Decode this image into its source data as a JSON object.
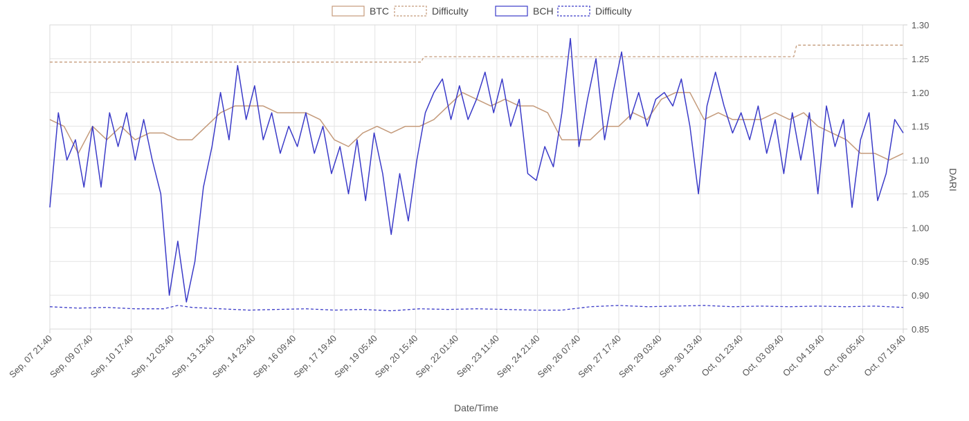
{
  "chart_data": {
    "type": "line",
    "xlabel": "Date/Time",
    "ylabel": "DARI",
    "ylim": [
      0.85,
      1.3
    ],
    "y_ticks": [
      "0.85",
      "0.90",
      "0.95",
      "1.00",
      "1.05",
      "1.10",
      "1.15",
      "1.20",
      "1.25",
      "1.30"
    ],
    "x_ticks": [
      "Sep, 07 21:40",
      "Sep, 09 07:40",
      "Sep, 10 17:40",
      "Sep, 12 03:40",
      "Sep, 13 13:40",
      "Sep, 14 23:40",
      "Sep, 16 09:40",
      "Sep, 17 19:40",
      "Sep, 19 05:40",
      "Sep, 20 15:40",
      "Sep, 22 01:40",
      "Sep, 23 11:40",
      "Sep, 24 21:40",
      "Sep, 26 07:40",
      "Sep, 27 17:40",
      "Sep, 29 03:40",
      "Sep, 30 13:40",
      "Oct, 01 23:40",
      "Oct, 03 09:40",
      "Oct, 04 19:40",
      "Oct, 06 05:40",
      "Oct, 07 19:40"
    ],
    "x_domain": [
      0,
      30
    ],
    "grid": true,
    "legend_position": "top-center",
    "legend": [
      {
        "label": "BTC",
        "color": "#c49a7a",
        "dashed": false
      },
      {
        "label": "Difficulty",
        "color": "#c49a7a",
        "dashed": true
      },
      {
        "label": "BCH",
        "color": "#3a3ac8",
        "dashed": false
      },
      {
        "label": "Difficulty",
        "color": "#3a3ac8",
        "dashed": true
      }
    ],
    "series": [
      {
        "name": "BTC",
        "color": "#c49a7a",
        "dashed": false,
        "points": [
          [
            0.0,
            1.16
          ],
          [
            0.5,
            1.15
          ],
          [
            1.0,
            1.11
          ],
          [
            1.5,
            1.15
          ],
          [
            2.0,
            1.13
          ],
          [
            2.5,
            1.15
          ],
          [
            3.0,
            1.13
          ],
          [
            3.5,
            1.14
          ],
          [
            4.0,
            1.14
          ],
          [
            4.5,
            1.13
          ],
          [
            5.0,
            1.13
          ],
          [
            5.5,
            1.15
          ],
          [
            6.0,
            1.17
          ],
          [
            6.5,
            1.18
          ],
          [
            7.0,
            1.18
          ],
          [
            7.5,
            1.18
          ],
          [
            8.0,
            1.17
          ],
          [
            8.5,
            1.17
          ],
          [
            9.0,
            1.17
          ],
          [
            9.5,
            1.16
          ],
          [
            10.0,
            1.13
          ],
          [
            10.5,
            1.12
          ],
          [
            11.0,
            1.14
          ],
          [
            11.5,
            1.15
          ],
          [
            12.0,
            1.14
          ],
          [
            12.5,
            1.15
          ],
          [
            13.0,
            1.15
          ],
          [
            13.5,
            1.16
          ],
          [
            14.0,
            1.18
          ],
          [
            14.5,
            1.2
          ],
          [
            15.0,
            1.19
          ],
          [
            15.5,
            1.18
          ],
          [
            16.0,
            1.19
          ],
          [
            16.5,
            1.18
          ],
          [
            17.0,
            1.18
          ],
          [
            17.5,
            1.17
          ],
          [
            18.0,
            1.13
          ],
          [
            18.5,
            1.13
          ],
          [
            19.0,
            1.13
          ],
          [
            19.5,
            1.15
          ],
          [
            20.0,
            1.15
          ],
          [
            20.5,
            1.17
          ],
          [
            21.0,
            1.16
          ],
          [
            21.5,
            1.19
          ],
          [
            22.0,
            1.2
          ],
          [
            22.5,
            1.2
          ],
          [
            23.0,
            1.16
          ],
          [
            23.5,
            1.17
          ],
          [
            24.0,
            1.16
          ],
          [
            24.5,
            1.16
          ],
          [
            25.0,
            1.16
          ],
          [
            25.5,
            1.17
          ],
          [
            26.0,
            1.16
          ],
          [
            26.5,
            1.17
          ],
          [
            27.0,
            1.15
          ],
          [
            27.5,
            1.14
          ],
          [
            28.0,
            1.13
          ],
          [
            28.5,
            1.11
          ],
          [
            29.0,
            1.11
          ],
          [
            29.5,
            1.1
          ],
          [
            30.0,
            1.11
          ]
        ]
      },
      {
        "name": "Difficulty",
        "color": "#c49a7a",
        "dashed": true,
        "points": [
          [
            0.0,
            1.245
          ],
          [
            13.05,
            1.245
          ],
          [
            13.15,
            1.253
          ],
          [
            26.15,
            1.253
          ],
          [
            26.25,
            1.27
          ],
          [
            30.0,
            1.27
          ]
        ]
      },
      {
        "name": "BCH",
        "color": "#3a3ac8",
        "dashed": false,
        "points": [
          [
            0.0,
            1.03
          ],
          [
            0.3,
            1.17
          ],
          [
            0.6,
            1.1
          ],
          [
            0.9,
            1.13
          ],
          [
            1.2,
            1.06
          ],
          [
            1.5,
            1.15
          ],
          [
            1.8,
            1.06
          ],
          [
            2.1,
            1.17
          ],
          [
            2.4,
            1.12
          ],
          [
            2.7,
            1.17
          ],
          [
            3.0,
            1.1
          ],
          [
            3.3,
            1.16
          ],
          [
            3.6,
            1.1
          ],
          [
            3.9,
            1.05
          ],
          [
            4.2,
            0.9
          ],
          [
            4.5,
            0.98
          ],
          [
            4.8,
            0.89
          ],
          [
            5.1,
            0.95
          ],
          [
            5.4,
            1.06
          ],
          [
            5.7,
            1.12
          ],
          [
            6.0,
            1.2
          ],
          [
            6.3,
            1.13
          ],
          [
            6.6,
            1.24
          ],
          [
            6.9,
            1.16
          ],
          [
            7.2,
            1.21
          ],
          [
            7.5,
            1.13
          ],
          [
            7.8,
            1.17
          ],
          [
            8.1,
            1.11
          ],
          [
            8.4,
            1.15
          ],
          [
            8.7,
            1.12
          ],
          [
            9.0,
            1.17
          ],
          [
            9.3,
            1.11
          ],
          [
            9.6,
            1.15
          ],
          [
            9.9,
            1.08
          ],
          [
            10.2,
            1.12
          ],
          [
            10.5,
            1.05
          ],
          [
            10.8,
            1.13
          ],
          [
            11.1,
            1.04
          ],
          [
            11.4,
            1.14
          ],
          [
            11.7,
            1.08
          ],
          [
            12.0,
            0.99
          ],
          [
            12.3,
            1.08
          ],
          [
            12.6,
            1.01
          ],
          [
            12.9,
            1.1
          ],
          [
            13.2,
            1.17
          ],
          [
            13.5,
            1.2
          ],
          [
            13.8,
            1.22
          ],
          [
            14.1,
            1.16
          ],
          [
            14.4,
            1.21
          ],
          [
            14.7,
            1.16
          ],
          [
            15.0,
            1.19
          ],
          [
            15.3,
            1.23
          ],
          [
            15.6,
            1.17
          ],
          [
            15.9,
            1.22
          ],
          [
            16.2,
            1.15
          ],
          [
            16.5,
            1.19
          ],
          [
            16.8,
            1.08
          ],
          [
            17.1,
            1.07
          ],
          [
            17.4,
            1.12
          ],
          [
            17.7,
            1.09
          ],
          [
            18.0,
            1.17
          ],
          [
            18.3,
            1.28
          ],
          [
            18.6,
            1.12
          ],
          [
            18.9,
            1.19
          ],
          [
            19.2,
            1.25
          ],
          [
            19.5,
            1.13
          ],
          [
            19.8,
            1.2
          ],
          [
            20.1,
            1.26
          ],
          [
            20.4,
            1.16
          ],
          [
            20.7,
            1.2
          ],
          [
            21.0,
            1.15
          ],
          [
            21.3,
            1.19
          ],
          [
            21.6,
            1.2
          ],
          [
            21.9,
            1.18
          ],
          [
            22.2,
            1.22
          ],
          [
            22.5,
            1.15
          ],
          [
            22.8,
            1.05
          ],
          [
            23.1,
            1.18
          ],
          [
            23.4,
            1.23
          ],
          [
            23.7,
            1.18
          ],
          [
            24.0,
            1.14
          ],
          [
            24.3,
            1.17
          ],
          [
            24.6,
            1.13
          ],
          [
            24.9,
            1.18
          ],
          [
            25.2,
            1.11
          ],
          [
            25.5,
            1.16
          ],
          [
            25.8,
            1.08
          ],
          [
            26.1,
            1.17
          ],
          [
            26.4,
            1.1
          ],
          [
            26.7,
            1.17
          ],
          [
            27.0,
            1.05
          ],
          [
            27.3,
            1.18
          ],
          [
            27.6,
            1.12
          ],
          [
            27.9,
            1.16
          ],
          [
            28.2,
            1.03
          ],
          [
            28.5,
            1.13
          ],
          [
            28.8,
            1.17
          ],
          [
            29.1,
            1.04
          ],
          [
            29.4,
            1.08
          ],
          [
            29.7,
            1.16
          ],
          [
            30.0,
            1.14
          ]
        ]
      },
      {
        "name": "Difficulty",
        "color": "#3a3ac8",
        "dashed": true,
        "points": [
          [
            0.0,
            0.883
          ],
          [
            1.0,
            0.881
          ],
          [
            2.0,
            0.882
          ],
          [
            3.0,
            0.88
          ],
          [
            4.0,
            0.88
          ],
          [
            4.5,
            0.885
          ],
          [
            5.0,
            0.882
          ],
          [
            6.0,
            0.88
          ],
          [
            7.0,
            0.878
          ],
          [
            8.0,
            0.879
          ],
          [
            9.0,
            0.88
          ],
          [
            10.0,
            0.878
          ],
          [
            11.0,
            0.879
          ],
          [
            12.0,
            0.877
          ],
          [
            13.0,
            0.88
          ],
          [
            14.0,
            0.879
          ],
          [
            15.0,
            0.88
          ],
          [
            16.0,
            0.879
          ],
          [
            17.0,
            0.878
          ],
          [
            18.0,
            0.878
          ],
          [
            19.0,
            0.883
          ],
          [
            20.0,
            0.885
          ],
          [
            21.0,
            0.883
          ],
          [
            22.0,
            0.884
          ],
          [
            23.0,
            0.885
          ],
          [
            24.0,
            0.883
          ],
          [
            25.0,
            0.884
          ],
          [
            26.0,
            0.883
          ],
          [
            27.0,
            0.884
          ],
          [
            28.0,
            0.883
          ],
          [
            29.0,
            0.884
          ],
          [
            30.0,
            0.882
          ]
        ]
      }
    ]
  }
}
